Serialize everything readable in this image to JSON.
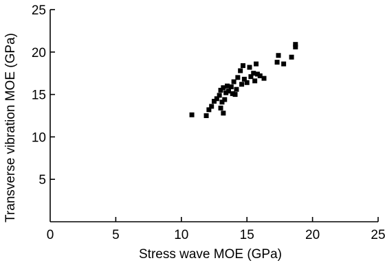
{
  "chart_data": {
    "type": "scatter",
    "title": "",
    "xlabel": "Stress wave MOE (GPa)",
    "ylabel": "Transverse vibration MOE (GPa)",
    "xlim": [
      0,
      25
    ],
    "ylim": [
      0,
      25
    ],
    "xticks": [
      0,
      5,
      10,
      15,
      20,
      25
    ],
    "yticks": [
      5,
      10,
      15,
      20,
      25
    ],
    "marker": "square",
    "marker_color": "#000000",
    "grid": false,
    "legend": "none",
    "series": [
      {
        "points": [
          [
            10.8,
            12.6
          ],
          [
            11.9,
            12.5
          ],
          [
            12.1,
            13.2
          ],
          [
            12.3,
            13.6
          ],
          [
            12.5,
            14.2
          ],
          [
            12.7,
            14.5
          ],
          [
            12.9,
            14.9
          ],
          [
            13.0,
            15.5
          ],
          [
            13.0,
            13.4
          ],
          [
            13.1,
            14.1
          ],
          [
            13.2,
            12.8
          ],
          [
            13.2,
            15.8
          ],
          [
            13.3,
            14.4
          ],
          [
            13.4,
            15.2
          ],
          [
            13.5,
            16.0
          ],
          [
            13.6,
            15.4
          ],
          [
            13.8,
            15.9
          ],
          [
            13.9,
            15.1
          ],
          [
            14.0,
            16.5
          ],
          [
            14.1,
            15.0
          ],
          [
            14.2,
            15.6
          ],
          [
            14.3,
            17.0
          ],
          [
            14.5,
            17.8
          ],
          [
            14.6,
            16.2
          ],
          [
            14.7,
            18.4
          ],
          [
            14.8,
            16.8
          ],
          [
            15.0,
            16.4
          ],
          [
            15.2,
            18.2
          ],
          [
            15.3,
            17.1
          ],
          [
            15.5,
            17.5
          ],
          [
            15.6,
            16.6
          ],
          [
            15.7,
            18.6
          ],
          [
            15.8,
            17.4
          ],
          [
            16.0,
            17.2
          ],
          [
            16.3,
            16.9
          ],
          [
            17.3,
            18.8
          ],
          [
            17.4,
            19.6
          ],
          [
            17.8,
            18.6
          ],
          [
            18.4,
            19.4
          ],
          [
            18.7,
            20.6
          ],
          [
            18.7,
            20.9
          ]
        ]
      }
    ]
  }
}
